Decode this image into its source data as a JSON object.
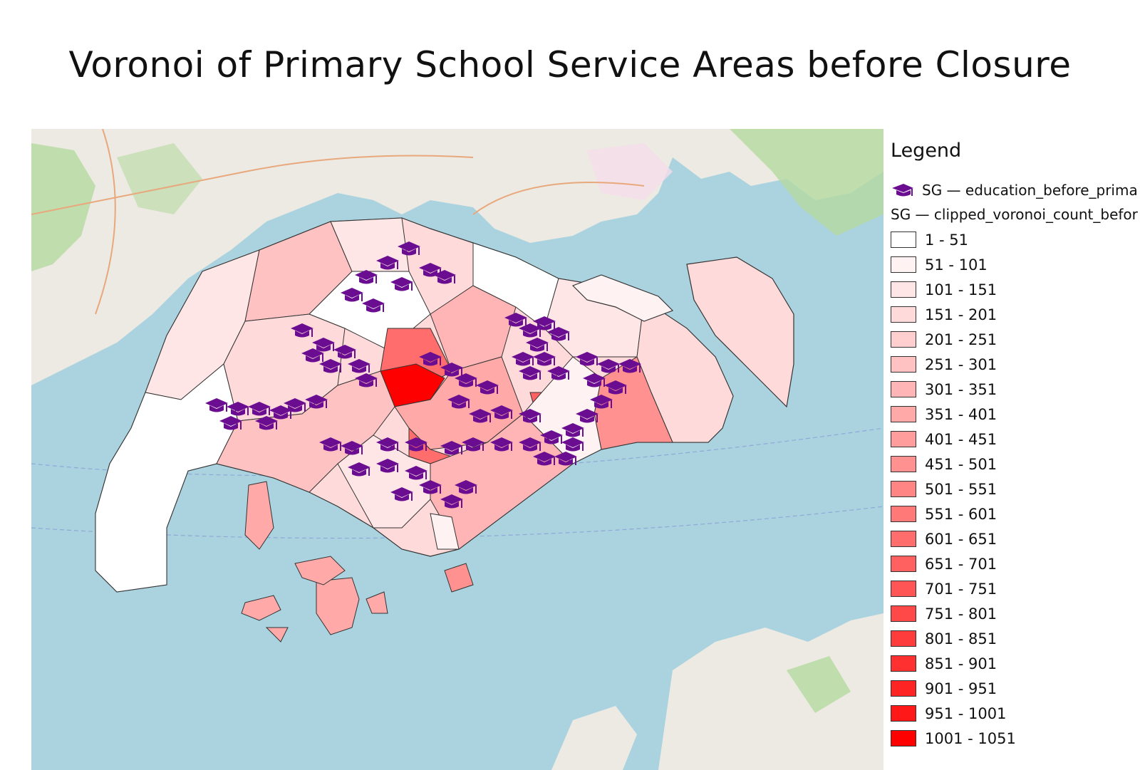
{
  "title": "Voronoi of Primary School Service Areas before Closure",
  "legend": {
    "title": "Legend",
    "point_layer": {
      "label": "SG — education_before_prima",
      "icon": "graduation-cap-icon",
      "color": "#6a0d91"
    },
    "polygon_layer": {
      "label": "SG — clipped_voronoi_count_befor"
    },
    "classes": [
      {
        "label": "1 - 51",
        "color": "#ffffff"
      },
      {
        "label": "51 - 101",
        "color": "#fff2f2"
      },
      {
        "label": "101 - 151",
        "color": "#ffe6e6"
      },
      {
        "label": "151 - 201",
        "color": "#ffdada"
      },
      {
        "label": "201 - 251",
        "color": "#ffcece"
      },
      {
        "label": "251 - 301",
        "color": "#ffc2c2"
      },
      {
        "label": "301 - 351",
        "color": "#ffb5b5"
      },
      {
        "label": "351 - 401",
        "color": "#ffa9a9"
      },
      {
        "label": "401 - 451",
        "color": "#ff9d9d"
      },
      {
        "label": "451 - 501",
        "color": "#ff9191"
      },
      {
        "label": "501 - 551",
        "color": "#ff8585"
      },
      {
        "label": "551 - 601",
        "color": "#ff7979"
      },
      {
        "label": "601 - 651",
        "color": "#ff6d6d"
      },
      {
        "label": "651 - 701",
        "color": "#ff6161"
      },
      {
        "label": "701 - 751",
        "color": "#ff5555"
      },
      {
        "label": "751 - 801",
        "color": "#ff4848"
      },
      {
        "label": "801 - 851",
        "color": "#ff3c3c"
      },
      {
        "label": "851 - 901",
        "color": "#ff3030"
      },
      {
        "label": "901 - 951",
        "color": "#ff2424"
      },
      {
        "label": "951 - 1001",
        "color": "#ff1818"
      },
      {
        "label": "1001 - 1051",
        "color": "#ff0000"
      }
    ]
  },
  "map": {
    "sea_color": "#aad3df",
    "basemap_land_color": "#eceae3",
    "vegetation_color": "#b5d9a0"
  }
}
